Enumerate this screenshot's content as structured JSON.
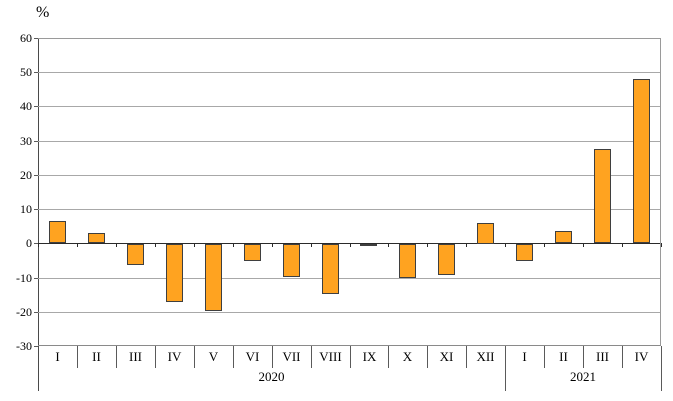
{
  "chart_data": {
    "type": "bar",
    "title": "",
    "ylabel": "%",
    "xlabel": "",
    "ylim": [
      -30,
      60
    ],
    "yticks": [
      60,
      50,
      40,
      30,
      20,
      10,
      0,
      -10,
      -20,
      -30
    ],
    "grid": true,
    "legend": "none",
    "bar_color": "#ffa320",
    "bar_border_color": "#3f3f3f",
    "categories": [
      "I",
      "II",
      "III",
      "IV",
      "V",
      "VI",
      "VII",
      "VIII",
      "IX",
      "X",
      "XI",
      "XII",
      "I",
      "II",
      "III",
      "IV"
    ],
    "groups": [
      {
        "label": "2020",
        "span": 12
      },
      {
        "label": "2021",
        "span": 4
      }
    ],
    "values": [
      6.5,
      3,
      -6,
      -17,
      -19.5,
      -5,
      -9.5,
      -14.5,
      -0.7,
      -10,
      -9,
      6,
      -5,
      3.5,
      27.5,
      48
    ]
  }
}
